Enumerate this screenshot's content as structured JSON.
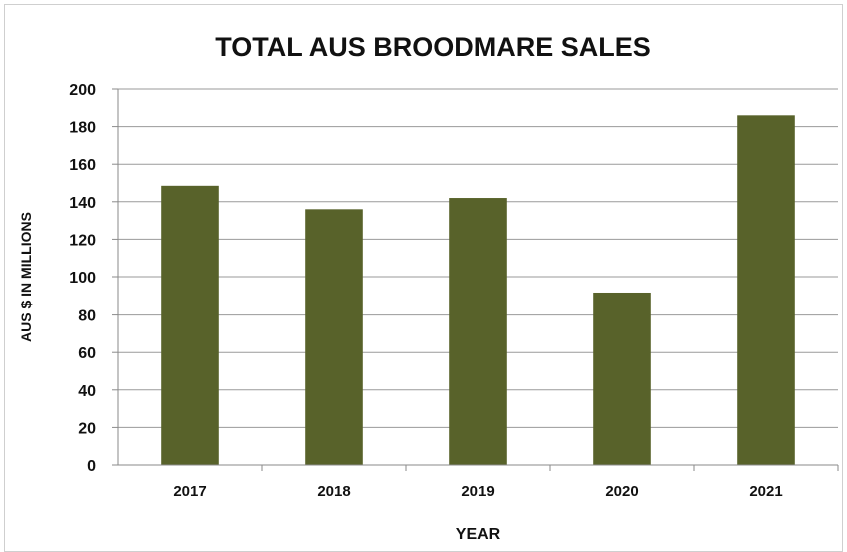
{
  "chart_data": {
    "type": "bar",
    "title": "TOTAL AUS BROODMARE SALES",
    "xlabel": "YEAR",
    "ylabel": "AUS $ IN MILLIONS",
    "categories": [
      "2017",
      "2018",
      "2019",
      "2020",
      "2021"
    ],
    "values": [
      148.5,
      136,
      142,
      91.5,
      186
    ],
    "ylim": [
      0,
      200
    ],
    "yticks": [
      0,
      20,
      40,
      60,
      80,
      100,
      120,
      140,
      160,
      180,
      200
    ],
    "grid": true,
    "legend": "none",
    "bar_color": "#58622a"
  }
}
